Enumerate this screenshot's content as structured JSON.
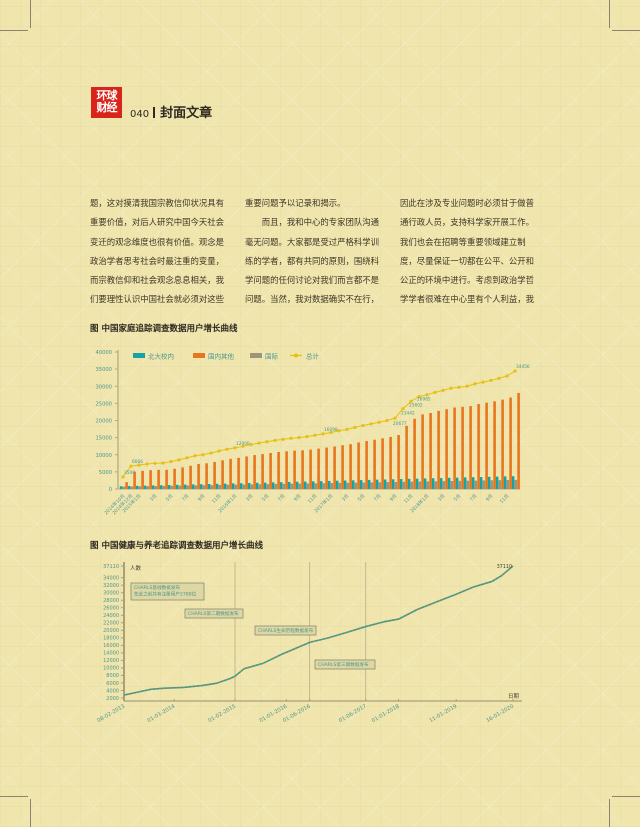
{
  "header": {
    "logo_text": [
      "环球",
      "财经"
    ],
    "page_number": "040",
    "section_title": "封面文章"
  },
  "article": {
    "columns": [
      [
        "题，这对摸清我国宗教信仰状况具有",
        "重要价值，对后人研究中国今天社会",
        "变迁的观念维度也很有价值。观念是",
        "政治学者思考社会时最注重的变量，",
        "而宗教信仰和社会观念息息相关，我",
        "们要理性认识中国社会就必须对这些"
      ],
      [
        "重要问题予以记录和揭示。",
        "　　而且，我和中心的专家团队沟通",
        "毫无问题。大家都是受过严格科学训",
        "练的学者，都有共同的原则，围绕科",
        "学问题的任何讨论对我们而言都不是",
        "问题。当然，我对数据确实不在行，"
      ],
      [
        "因此在涉及专业问题时必须甘于做普",
        "通行政人员，支持科学家开展工作。",
        "我们也会在招聘等重要领域建立制",
        "度，尽量保证一切都在公平、公开和",
        "公正的环境中进行。考虑到政治学哲",
        "学学者很难在中心里有个人利益，我"
      ]
    ]
  },
  "chart_data": [
    {
      "type": "bar",
      "title": "图  中国家庭追踪调查数据用户增长曲线",
      "ylim": [
        0,
        40000
      ],
      "yticks": [
        0,
        5000,
        10000,
        15000,
        20000,
        25000,
        30000,
        35000,
        40000
      ],
      "legend_position": "top",
      "grid": false,
      "categories": [
        "2014年10月",
        "2014年12月",
        "2015年1月",
        "",
        "3月",
        "",
        "5月",
        "",
        "7月",
        "",
        "9月",
        "",
        "11月",
        "",
        "2016年1月",
        "",
        "3月",
        "",
        "5月",
        "",
        "7月",
        "",
        "9月",
        "",
        "11月",
        "",
        "2017年1月",
        "",
        "3月",
        "",
        "5月",
        "",
        "7月",
        "",
        "9月",
        "",
        "11月",
        "",
        "2018年1月",
        "",
        "3月",
        "",
        "5月",
        "",
        "7月",
        "",
        "9月",
        "",
        "11月",
        ""
      ],
      "series": [
        {
          "name": "北大校内",
          "kind": "bar",
          "color": "#17a3a3",
          "values": [
            800,
            860,
            920,
            980,
            1040,
            1100,
            1160,
            1220,
            1280,
            1340,
            1400,
            1460,
            1520,
            1580,
            1640,
            1700,
            1760,
            1820,
            1880,
            1940,
            2000,
            2060,
            2120,
            2180,
            2240,
            2300,
            2360,
            2420,
            2480,
            2540,
            2600,
            2660,
            2720,
            2780,
            2840,
            2900,
            2960,
            3020,
            3080,
            3140,
            3200,
            3260,
            3320,
            3380,
            3440,
            3500,
            3560,
            3620,
            3680,
            3740
          ]
        },
        {
          "name": "国内其他",
          "kind": "bar",
          "color": "#e8761e",
          "values": [
            2000,
            5066,
            5300,
            5500,
            5600,
            5600,
            5900,
            6300,
            6800,
            7300,
            7500,
            7900,
            8400,
            8800,
            9100,
            9500,
            9900,
            10200,
            10500,
            10800,
            11000,
            11200,
            11300,
            11500,
            11800,
            12098,
            12400,
            12800,
            13100,
            13600,
            14000,
            14400,
            14800,
            15200,
            15777,
            18442,
            20502,
            21785,
            22200,
            22800,
            23300,
            23800,
            24000,
            24200,
            24800,
            25200,
            25600,
            26100,
            26700,
            28056
          ]
        },
        {
          "name": "国际",
          "kind": "bar",
          "color": "#9c9678",
          "values": [
            700,
            740,
            780,
            820,
            860,
            900,
            940,
            980,
            1020,
            1060,
            1100,
            1140,
            1180,
            1220,
            1260,
            1300,
            1340,
            1380,
            1420,
            1460,
            1500,
            1540,
            1580,
            1620,
            1660,
            1700,
            1740,
            1780,
            1820,
            1860,
            1900,
            1940,
            1980,
            2020,
            2060,
            2100,
            2140,
            2180,
            2220,
            2260,
            2300,
            2340,
            2380,
            2420,
            2460,
            2500,
            2540,
            2580,
            2620,
            2660
          ]
        },
        {
          "name": "总计",
          "kind": "line",
          "color": "#e6c012",
          "values": [
            3500,
            6666,
            7000,
            7300,
            7500,
            7600,
            8000,
            8500,
            9100,
            9700,
            10000,
            10500,
            11100,
            11600,
            12000,
            12500,
            13000,
            13400,
            13800,
            14200,
            14500,
            14800,
            15000,
            15300,
            15700,
            16098,
            16500,
            17000,
            17400,
            18000,
            18500,
            19000,
            19500,
            20000,
            20677,
            23442,
            25602,
            26985,
            27500,
            28200,
            28800,
            29400,
            29700,
            30000,
            30700,
            31200,
            31700,
            32300,
            33000,
            34456
          ],
          "data_labels": [
            "3500",
            "6666",
            "",
            "",
            "",
            "",
            "",
            "",
            "",
            "",
            "",
            "",
            "",
            "",
            "12000",
            "",
            "",
            "",
            "",
            "",
            "",
            "",
            "",
            "",
            "",
            "16098",
            "",
            "",
            "",
            "",
            "",
            "",
            "",
            "",
            "20677",
            "23442",
            "25602",
            "26985",
            "",
            "",
            "",
            "",
            "",
            "",
            "",
            "",
            "",
            "",
            "",
            "34456"
          ]
        }
      ]
    },
    {
      "type": "line",
      "title": "图  中国健康与养老追踪调查数据用户增长曲线",
      "ylabel": "人数",
      "xlabel": "日期",
      "ylim": [
        2000,
        37110
      ],
      "yticks": [
        2000,
        4000,
        6000,
        8000,
        10000,
        12000,
        14000,
        16000,
        18000,
        20000,
        22000,
        24000,
        26000,
        28000,
        30000,
        32000,
        34000,
        37110
      ],
      "xticks": [
        "08-02-2013",
        "01-01-2014",
        "01-02-2015",
        "01-01-2016",
        "01-06-2016",
        "01-06-2017",
        "01-01-2018",
        "11-01-2019",
        "16-01-2020"
      ],
      "line_colors": [
        "#1ea3a8",
        "#e8761e"
      ],
      "end_label": "37110",
      "points": [
        {
          "date": "08-02-2013",
          "value": 2788
        },
        {
          "date": "01-05-2013",
          "value": 3500
        },
        {
          "date": "01-08-2013",
          "value": 4300
        },
        {
          "date": "01-11-2013",
          "value": 4600
        },
        {
          "date": "01-03-2014",
          "value": 4800
        },
        {
          "date": "01-07-2014",
          "value": 5300
        },
        {
          "date": "01-10-2014",
          "value": 5900
        },
        {
          "date": "01-01-2015",
          "value": 7200
        },
        {
          "date": "01-02-2015",
          "value": 7800
        },
        {
          "date": "01-04-2015",
          "value": 9800
        },
        {
          "date": "01-08-2015",
          "value": 11200
        },
        {
          "date": "01-12-2015",
          "value": 13600
        },
        {
          "date": "01-06-2016",
          "value": 16800
        },
        {
          "date": "01-10-2016",
          "value": 18000
        },
        {
          "date": "01-02-2017",
          "value": 19500
        },
        {
          "date": "01-06-2017",
          "value": 21000
        },
        {
          "date": "01-10-2017",
          "value": 22300
        },
        {
          "date": "01-01-2018",
          "value": 23000
        },
        {
          "date": "01-05-2018",
          "value": 25500
        },
        {
          "date": "01-09-2018",
          "value": 27500
        },
        {
          "date": "11-01-2019",
          "value": 29600
        },
        {
          "date": "01-05-2019",
          "value": 31500
        },
        {
          "date": "01-09-2019",
          "value": 33000
        },
        {
          "date": "01-11-2019",
          "value": 34500
        },
        {
          "date": "16-01-2020",
          "value": 37110
        }
      ],
      "release_lines": [
        "01-02-2015",
        "01-06-2016",
        "01-06-2017"
      ],
      "annotations": [
        {
          "lines": [
            "CHARLS基线数据发布",
            "在此之前共有注册用户2788位"
          ]
        },
        {
          "lines": [
            "CHARLS第二期数据发布"
          ]
        },
        {
          "lines": [
            "CHARLS生命历程数据发布"
          ]
        },
        {
          "lines": [
            "CHARLS第三期数据发布"
          ]
        }
      ]
    }
  ]
}
